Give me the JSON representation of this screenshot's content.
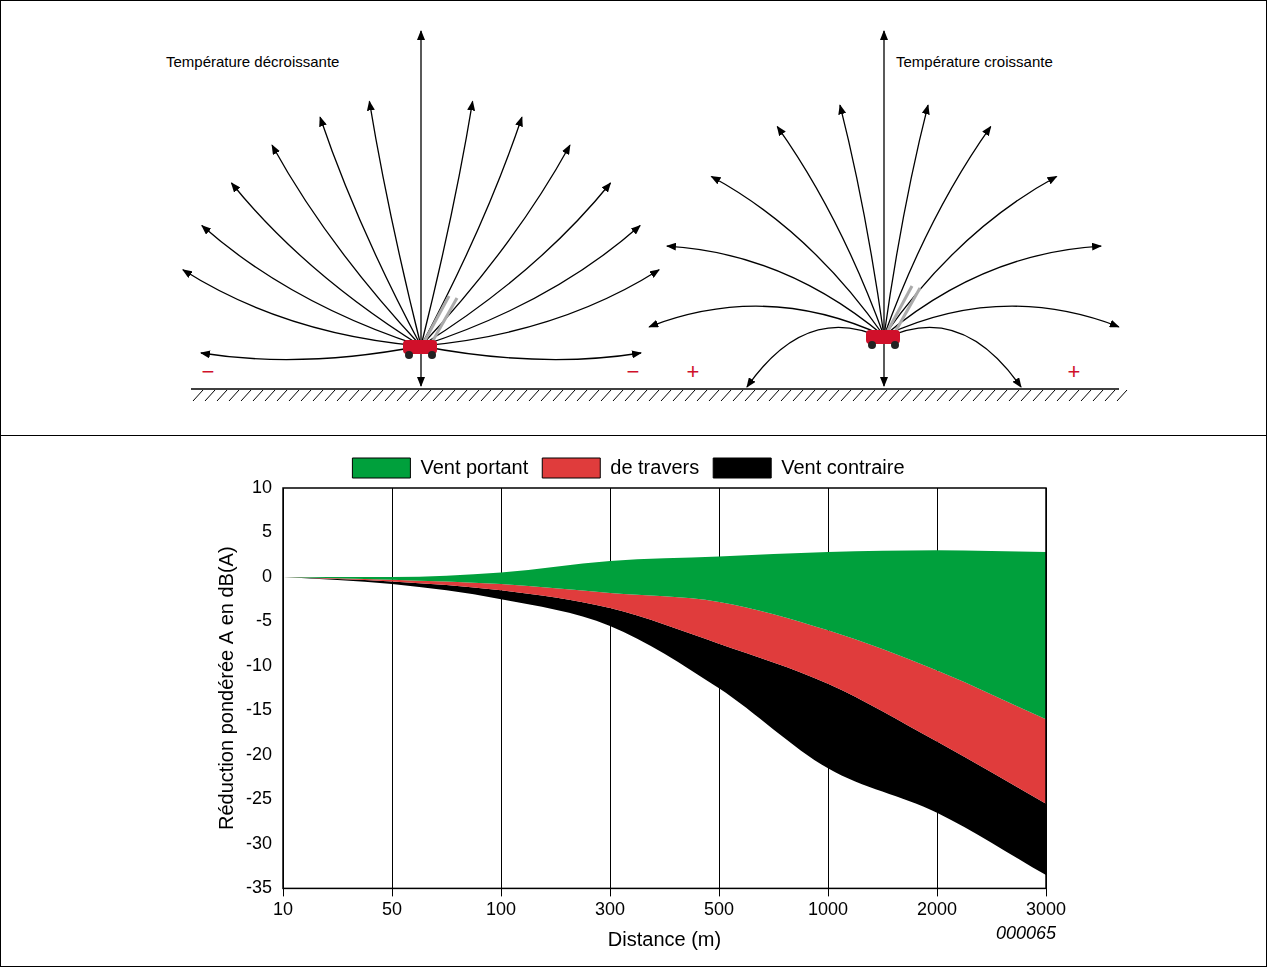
{
  "diagram": {
    "panels": [
      {
        "title": "Température décroissante",
        "signs": [
          "−",
          "−"
        ]
      },
      {
        "title": "Température croissante",
        "signs": [
          "+",
          "+"
        ]
      }
    ]
  },
  "chart_data": {
    "type": "area",
    "categories": [
      "10",
      "50",
      "100",
      "300",
      "500",
      "1000",
      "2000",
      "3000"
    ],
    "x_label": "Distance (m)",
    "y_label": "Réduction pondérée A en dB(A)",
    "annotation": "000065",
    "ylim": [
      -35,
      10
    ],
    "yticks": [
      -35,
      -30,
      -25,
      -20,
      -15,
      -10,
      -5,
      0,
      5,
      10
    ],
    "grid": true,
    "legend": "top",
    "series": [
      {
        "name": "Vent portant",
        "color": "#00a03c",
        "values": [
          [
            0,
            0
          ],
          [
            -0.3,
            0
          ],
          [
            -0.8,
            0.5
          ],
          [
            -1.8,
            1.8
          ],
          [
            -2.8,
            2.3
          ],
          [
            -6,
            2.8
          ],
          [
            -10.5,
            3
          ],
          [
            -16,
            2.8
          ]
        ]
      },
      {
        "name": "de travers",
        "color": "#e03c3c",
        "values": [
          [
            0,
            0
          ],
          [
            -0.5,
            -0.3
          ],
          [
            -1.5,
            -0.8
          ],
          [
            -3.5,
            -1.8
          ],
          [
            -7.5,
            -2.8
          ],
          [
            -12,
            -6
          ],
          [
            -18.5,
            -10.5
          ],
          [
            -25.5,
            -16
          ]
        ]
      },
      {
        "name": "Vent contraire",
        "color": "#000000",
        "values": [
          [
            0,
            0
          ],
          [
            -0.8,
            -0.5
          ],
          [
            -2.5,
            -1.5
          ],
          [
            -5.5,
            -3.5
          ],
          [
            -12.5,
            -7.5
          ],
          [
            -21.5,
            -12
          ],
          [
            -26.5,
            -18.5
          ],
          [
            -33.5,
            -25.5
          ]
        ]
      }
    ]
  }
}
